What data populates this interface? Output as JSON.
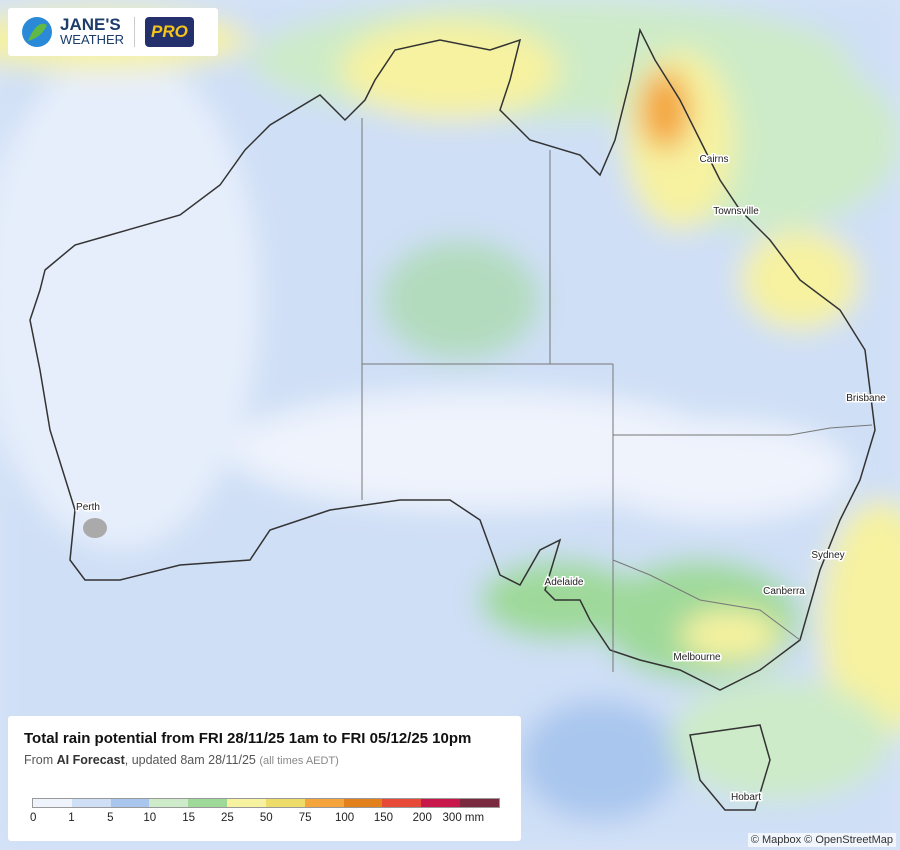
{
  "logo": {
    "line1": "JANE'S",
    "line2": "WEATHER",
    "badge": "PRO"
  },
  "places": [
    "Cairns",
    "Townsville",
    "Brisbane",
    "Sydney",
    "Canberra",
    "Melbourne",
    "Hobart",
    "Perth",
    "Adelaide"
  ],
  "legend": {
    "title": "Total rain potential from FRI 28/11/25 1am to FRI 05/12/25 10pm",
    "subtitle": {
      "prefix": "From",
      "source": "AI Forecast",
      "updated": ", updated 8am 28/11/25",
      "note": "(all times AEDT)"
    },
    "labels": [
      "0",
      "1",
      "5",
      "10",
      "15",
      "25",
      "50",
      "75",
      "100",
      "150",
      "200",
      "300 mm"
    ],
    "colors": [
      "#eef3fc",
      "#cfdff6",
      "#a9c6ee",
      "#cdebc8",
      "#9fd99a",
      "#f6f2a0",
      "#eedc6a",
      "#f4a43a",
      "#e2801c",
      "#e84a3a",
      "#c8174a",
      "#7a2a3e"
    ]
  },
  "attribution": "© Mapbox © OpenStreetMap"
}
